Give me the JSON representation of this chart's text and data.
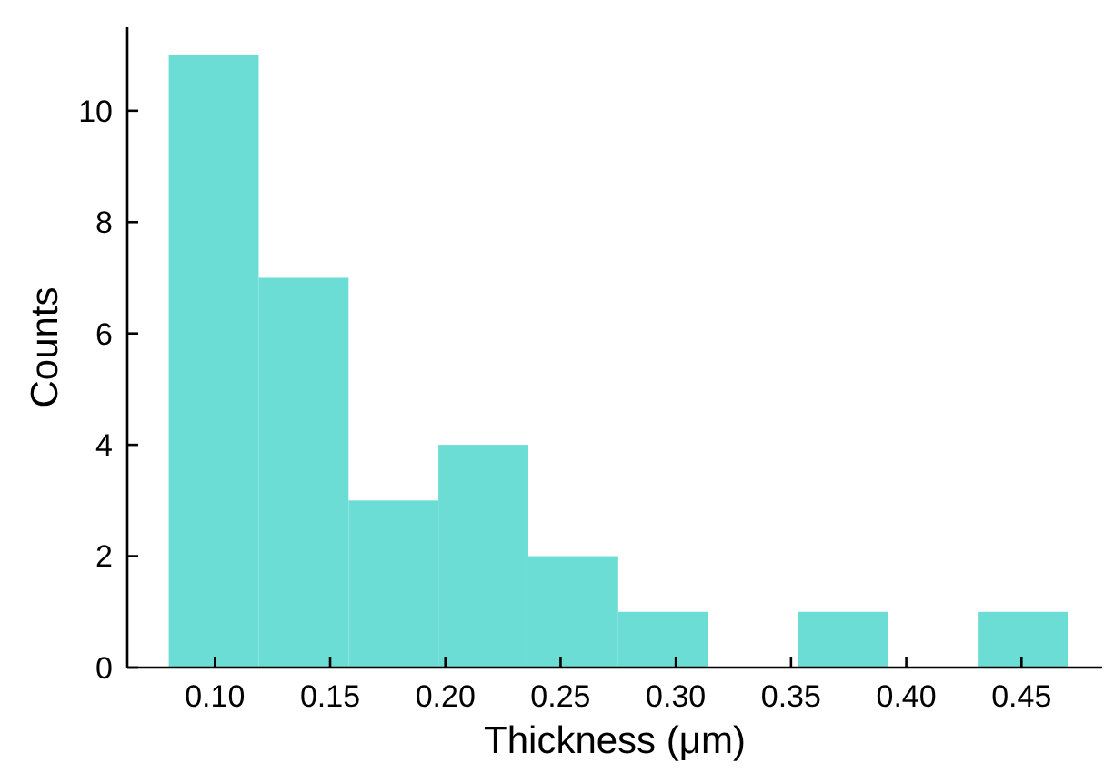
{
  "chart_data": {
    "type": "histogram",
    "xlabel": "Thickness (μm)",
    "ylabel": "Counts",
    "bins": [
      0.08,
      0.119,
      0.158,
      0.197,
      0.236,
      0.275,
      0.314,
      0.353,
      0.392,
      0.431,
      0.47
    ],
    "values": [
      11,
      7,
      3,
      4,
      2,
      1,
      0,
      1,
      0,
      1
    ],
    "color": "#6cddd4",
    "xlim": [
      0.062,
      0.485
    ],
    "xticks": [
      {
        "value": 0.1,
        "label": "0.10"
      },
      0.15,
      {
        "value": 0.2,
        "label": "0.20"
      },
      0.25,
      {
        "value": 0.3,
        "label": "0.30"
      },
      0.35,
      {
        "value": 0.4,
        "label": "0.40"
      },
      0.45
    ],
    "ylim": [
      0,
      11.5
    ],
    "yticks": [
      0,
      2,
      4,
      6,
      8,
      10
    ],
    "grid": false
  }
}
